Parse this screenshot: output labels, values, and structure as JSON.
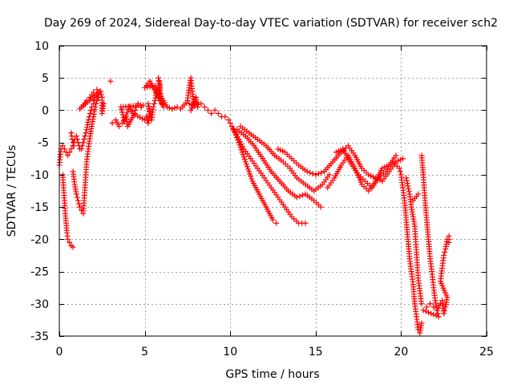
{
  "chart_data": {
    "type": "scatter",
    "title": "Day 269 of 2024, Sidereal Day-to-day VTEC variation (SDTVAR) for receiver sch2",
    "xlabel": "GPS time / hours",
    "ylabel": "SDTVAR / TECUs",
    "xlim": [
      0,
      25
    ],
    "ylim": [
      -35,
      10
    ],
    "xticks": [
      0,
      5,
      10,
      15,
      20,
      25
    ],
    "yticks": [
      10,
      5,
      0,
      -5,
      -10,
      -15,
      -20,
      -25,
      -30,
      -35
    ],
    "grid": true,
    "marker": "+",
    "color": "#ff0000",
    "series": [
      {
        "name": "SDTVAR",
        "points": [
          [
            0.0,
            -8.5
          ],
          [
            0.1,
            -6.0
          ],
          [
            0.2,
            -5.5
          ],
          [
            0.3,
            -6.0
          ],
          [
            0.4,
            -6.5
          ],
          [
            0.5,
            -7.0
          ],
          [
            0.6,
            -6.5
          ],
          [
            0.7,
            -6.0
          ],
          [
            0.8,
            -5.5
          ],
          [
            0.9,
            -4.5
          ],
          [
            1.0,
            -4.0
          ],
          [
            1.1,
            -5.0
          ],
          [
            1.2,
            -6.0
          ],
          [
            1.3,
            -6.0
          ],
          [
            1.4,
            -5.0
          ],
          [
            1.5,
            -4.0
          ],
          [
            1.6,
            -3.0
          ],
          [
            1.7,
            -1.5
          ],
          [
            1.8,
            -0.5
          ],
          [
            1.9,
            0.5
          ],
          [
            2.0,
            1.0
          ],
          [
            2.1,
            2.0
          ],
          [
            2.2,
            2.5
          ],
          [
            2.3,
            2.0
          ],
          [
            0.2,
            -10.0
          ],
          [
            0.25,
            -12.0
          ],
          [
            0.3,
            -14.0
          ],
          [
            0.35,
            -16.0
          ],
          [
            0.4,
            -17.5
          ],
          [
            0.45,
            -19.0
          ],
          [
            0.5,
            -20.0
          ],
          [
            0.6,
            -20.5
          ],
          [
            0.7,
            -21.0
          ],
          [
            0.8,
            -21.2
          ],
          [
            0.8,
            -9.5
          ],
          [
            0.9,
            -11.5
          ],
          [
            1.0,
            -13.0
          ],
          [
            1.1,
            -14.0
          ],
          [
            1.2,
            -15.0
          ],
          [
            1.3,
            -15.5
          ],
          [
            1.4,
            -16.0
          ],
          [
            1.45,
            -14.0
          ],
          [
            1.5,
            -12.0
          ],
          [
            1.55,
            -10.0
          ],
          [
            1.6,
            -8.0
          ],
          [
            1.7,
            -6.0
          ],
          [
            1.8,
            -4.0
          ],
          [
            1.9,
            -2.5
          ],
          [
            2.0,
            -1.0
          ],
          [
            2.1,
            0.5
          ],
          [
            2.2,
            1.5
          ],
          [
            2.3,
            2.5
          ],
          [
            2.4,
            3.0
          ],
          [
            1.2,
            0.2
          ],
          [
            1.4,
            0.8
          ],
          [
            1.6,
            1.5
          ],
          [
            1.8,
            2.0
          ],
          [
            2.0,
            2.8
          ],
          [
            2.2,
            3.2
          ],
          [
            2.4,
            2.8
          ],
          [
            2.5,
            2.0
          ],
          [
            2.5,
            -0.5
          ],
          [
            2.6,
            1.0
          ],
          [
            0.7,
            -3.5
          ],
          [
            0.75,
            -4.5
          ],
          [
            0.85,
            -5.5
          ],
          [
            3.0,
            4.5
          ],
          [
            3.1,
            -2.0
          ],
          [
            3.3,
            -1.5
          ],
          [
            3.5,
            -2.5
          ],
          [
            3.7,
            -2.0
          ],
          [
            3.9,
            -1.0
          ],
          [
            4.0,
            -2.5
          ],
          [
            4.2,
            -1.5
          ],
          [
            4.4,
            -0.5
          ],
          [
            4.5,
            0.5
          ],
          [
            4.6,
            1.0
          ],
          [
            4.8,
            0.5
          ],
          [
            4.9,
            0.8
          ],
          [
            3.6,
            0.5
          ],
          [
            3.8,
            -1.5
          ],
          [
            4.1,
            0.5
          ],
          [
            4.3,
            -0.5
          ],
          [
            5.0,
            -1.5
          ],
          [
            5.1,
            -1.0
          ],
          [
            5.2,
            -2.0
          ],
          [
            5.3,
            -0.5
          ],
          [
            5.2,
            1.0
          ],
          [
            5.4,
            -1.5
          ],
          [
            5.5,
            0.5
          ],
          [
            5.6,
            1.5
          ],
          [
            5.7,
            3.0
          ],
          [
            5.8,
            2.0
          ],
          [
            5.9,
            4.0
          ],
          [
            5.8,
            5.0
          ],
          [
            6.0,
            1.0
          ],
          [
            6.1,
            0.5
          ],
          [
            5.3,
            4.5
          ],
          [
            5.0,
            3.5
          ],
          [
            5.6,
            3.8
          ],
          [
            6.3,
            0.5
          ],
          [
            6.6,
            0.2
          ],
          [
            6.9,
            0.5
          ],
          [
            7.1,
            0.2
          ],
          [
            7.3,
            0.8
          ],
          [
            7.5,
            1.5
          ],
          [
            7.6,
            3.5
          ],
          [
            7.7,
            5.0
          ],
          [
            7.8,
            2.5
          ],
          [
            7.9,
            1.0
          ],
          [
            7.7,
            0.0
          ],
          [
            8.0,
            2.0
          ],
          [
            8.1,
            0.5
          ],
          [
            7.6,
            1.0
          ],
          [
            8.3,
            1.0
          ],
          [
            8.5,
            0.5
          ],
          [
            8.7,
            0.0
          ],
          [
            8.9,
            -0.5
          ],
          [
            9.1,
            0.0
          ],
          [
            9.3,
            -0.5
          ],
          [
            9.5,
            -1.0
          ],
          [
            9.7,
            -1.0
          ],
          [
            9.9,
            -1.5
          ],
          [
            10.0,
            -2.0
          ],
          [
            10.1,
            -2.5
          ],
          [
            10.3,
            -3.5
          ],
          [
            10.5,
            -5.0
          ],
          [
            10.7,
            -6.5
          ],
          [
            10.9,
            -8.0
          ],
          [
            11.1,
            -9.5
          ],
          [
            11.3,
            -11.0
          ],
          [
            11.5,
            -12.0
          ],
          [
            11.7,
            -13.0
          ],
          [
            11.9,
            -14.0
          ],
          [
            12.1,
            -15.0
          ],
          [
            12.3,
            -16.0
          ],
          [
            12.5,
            -17.0
          ],
          [
            12.7,
            -17.5
          ],
          [
            10.2,
            -3.0
          ],
          [
            10.5,
            -4.5
          ],
          [
            10.8,
            -6.0
          ],
          [
            11.2,
            -7.5
          ],
          [
            11.6,
            -9.0
          ],
          [
            12.0,
            -10.5
          ],
          [
            12.4,
            -12.0
          ],
          [
            12.8,
            -13.5
          ],
          [
            13.2,
            -15.0
          ],
          [
            13.6,
            -16.5
          ],
          [
            14.0,
            -17.5
          ],
          [
            14.4,
            -17.5
          ],
          [
            10.4,
            -3.0
          ],
          [
            10.9,
            -4.0
          ],
          [
            11.4,
            -5.5
          ],
          [
            11.9,
            -7.5
          ],
          [
            12.4,
            -9.5
          ],
          [
            12.9,
            -11.0
          ],
          [
            13.4,
            -12.5
          ],
          [
            13.9,
            -13.5
          ],
          [
            14.4,
            -13.0
          ],
          [
            14.9,
            -14.0
          ],
          [
            15.3,
            -15.0
          ],
          [
            10.6,
            -2.5
          ],
          [
            11.1,
            -3.5
          ],
          [
            11.6,
            -4.5
          ],
          [
            12.1,
            -5.5
          ],
          [
            12.6,
            -7.0
          ],
          [
            13.1,
            -8.0
          ],
          [
            13.5,
            -9.0
          ],
          [
            13.9,
            -10.5
          ],
          [
            14.4,
            -11.5
          ],
          [
            14.9,
            -12.5
          ],
          [
            15.4,
            -11.5
          ],
          [
            15.8,
            -10.0
          ],
          [
            12.8,
            -6.0
          ],
          [
            13.2,
            -6.5
          ],
          [
            13.6,
            -7.5
          ],
          [
            14.0,
            -8.5
          ],
          [
            14.5,
            -9.5
          ],
          [
            15.0,
            -10.0
          ],
          [
            15.5,
            -9.5
          ],
          [
            16.0,
            -8.0
          ],
          [
            16.5,
            -6.5
          ],
          [
            16.9,
            -5.5
          ],
          [
            17.3,
            -7.0
          ],
          [
            17.7,
            -9.0
          ],
          [
            18.1,
            -10.0
          ],
          [
            18.5,
            -10.5
          ],
          [
            18.9,
            -11.0
          ],
          [
            19.3,
            -9.5
          ],
          [
            19.7,
            -8.0
          ],
          [
            20.1,
            -7.5
          ],
          [
            15.7,
            -12.0
          ],
          [
            16.1,
            -10.5
          ],
          [
            16.5,
            -8.5
          ],
          [
            16.9,
            -7.0
          ],
          [
            17.3,
            -9.0
          ],
          [
            17.7,
            -11.5
          ],
          [
            18.1,
            -12.5
          ],
          [
            18.5,
            -11.0
          ],
          [
            18.9,
            -9.0
          ],
          [
            19.3,
            -8.5
          ],
          [
            19.7,
            -7.0
          ],
          [
            16.2,
            -6.5
          ],
          [
            16.6,
            -6.0
          ],
          [
            17.0,
            -8.0
          ],
          [
            17.5,
            -10.0
          ],
          [
            17.9,
            -11.0
          ],
          [
            18.3,
            -12.0
          ],
          [
            18.7,
            -10.5
          ],
          [
            19.1,
            -9.5
          ],
          [
            19.5,
            -8.0
          ],
          [
            19.9,
            -9.0
          ],
          [
            20.0,
            -10.0
          ],
          [
            20.1,
            -12.0
          ],
          [
            20.2,
            -14.0
          ],
          [
            20.3,
            -17.0
          ],
          [
            20.4,
            -20.0
          ],
          [
            20.5,
            -23.0
          ],
          [
            20.6,
            -25.0
          ],
          [
            20.7,
            -27.0
          ],
          [
            20.8,
            -30.0
          ],
          [
            20.9,
            -32.0
          ],
          [
            21.0,
            -34.0
          ],
          [
            21.1,
            -34.5
          ],
          [
            21.2,
            -33.0
          ],
          [
            20.3,
            -10.5
          ],
          [
            20.5,
            -13.0
          ],
          [
            20.6,
            -15.0
          ],
          [
            20.8,
            -18.0
          ],
          [
            20.9,
            -22.0
          ],
          [
            21.0,
            -26.0
          ],
          [
            21.1,
            -28.0
          ],
          [
            21.2,
            -30.0
          ],
          [
            20.7,
            -14.0
          ],
          [
            21.0,
            -13.0
          ],
          [
            21.2,
            -7.0
          ],
          [
            21.3,
            -10.0
          ],
          [
            21.4,
            -14.0
          ],
          [
            21.5,
            -17.0
          ],
          [
            21.6,
            -20.0
          ],
          [
            21.7,
            -23.0
          ],
          [
            21.8,
            -25.0
          ],
          [
            21.9,
            -27.5
          ],
          [
            22.0,
            -29.5
          ],
          [
            22.1,
            -31.0
          ],
          [
            22.2,
            -32.0
          ],
          [
            21.3,
            -31.0
          ],
          [
            21.5,
            -30.5
          ],
          [
            21.7,
            -30.0
          ],
          [
            21.9,
            -30.5
          ],
          [
            22.1,
            -31.0
          ],
          [
            22.3,
            -30.0
          ],
          [
            22.4,
            -29.5
          ],
          [
            22.5,
            -31.5
          ],
          [
            22.6,
            -30.5
          ],
          [
            22.7,
            -29.0
          ],
          [
            22.3,
            -26.5
          ],
          [
            22.4,
            -24.5
          ],
          [
            22.5,
            -22.5
          ],
          [
            22.6,
            -21.5
          ],
          [
            22.7,
            -20.0
          ],
          [
            22.8,
            -19.5
          ],
          [
            22.8,
            -20.5
          ]
        ]
      }
    ]
  }
}
